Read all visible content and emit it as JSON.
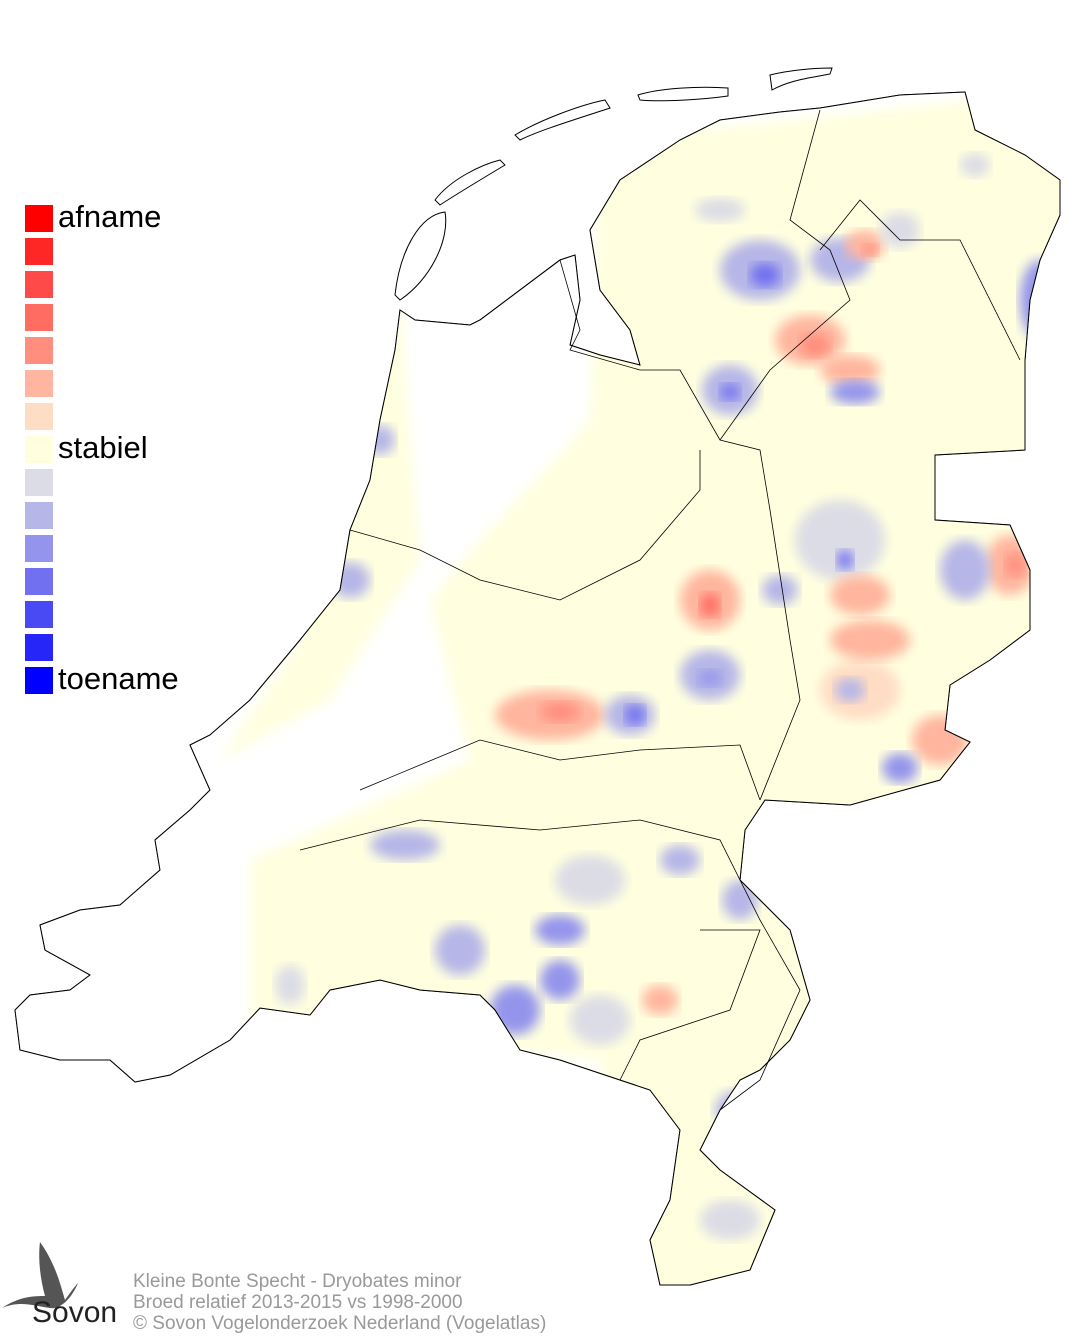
{
  "legend": {
    "items": [
      {
        "label": "afname",
        "color": "#ff0000"
      },
      {
        "label": "",
        "color": "#ff2626"
      },
      {
        "label": "",
        "color": "#ff4a4a"
      },
      {
        "label": "",
        "color": "#ff6c62"
      },
      {
        "label": "",
        "color": "#ff8e7e"
      },
      {
        "label": "",
        "color": "#ffb59f"
      },
      {
        "label": "",
        "color": "#ffdcc4"
      },
      {
        "label": "stabiel",
        "color": "#ffffe0"
      },
      {
        "label": "",
        "color": "#dcdce6"
      },
      {
        "label": "",
        "color": "#b6b6e8"
      },
      {
        "label": "",
        "color": "#9494ec"
      },
      {
        "label": "",
        "color": "#7070f0"
      },
      {
        "label": "",
        "color": "#4a4af4"
      },
      {
        "label": "",
        "color": "#2626f8"
      },
      {
        "label": "toename",
        "color": "#0000ff"
      }
    ]
  },
  "footer": {
    "species": "Kleine Bonte Specht - Dryobates minor",
    "subtitle": "Broed relatief 2013-2015 vs 1998-2000",
    "copyright": "© Sovon Vogelonderzoek Nederland (Vogelatlas)"
  },
  "logo": {
    "text": "Sovon"
  },
  "map": {
    "base_color": "#ffffe0",
    "outline_color": "#000000"
  }
}
